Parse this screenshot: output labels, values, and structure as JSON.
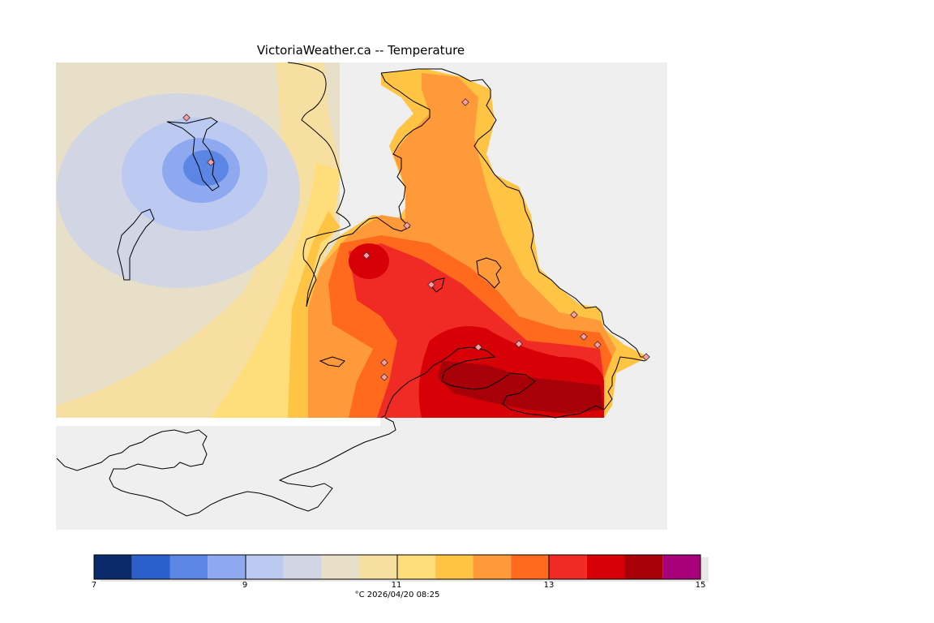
{
  "title": "VictoriaWeather.ca -- Temperature",
  "legend": {
    "colors": [
      "#0b2a6b",
      "#2b5fcc",
      "#5b86e6",
      "#8ea9f0",
      "#bccaf2",
      "#d2d6e4",
      "#e8dfc8",
      "#f7dfa2",
      "#ffdd7a",
      "#ffc444",
      "#ff9a3a",
      "#ff6a1c",
      "#f02a24",
      "#d60006",
      "#a80008",
      "#a8007a"
    ],
    "min": 7,
    "max": 15,
    "step": 0.5,
    "tick_labels": [
      "7",
      "9",
      "11",
      "13",
      "15"
    ],
    "footer": "°C  2026/04/20 08:25"
  },
  "map": {
    "background": "#efefef",
    "stations_count": 14
  }
}
